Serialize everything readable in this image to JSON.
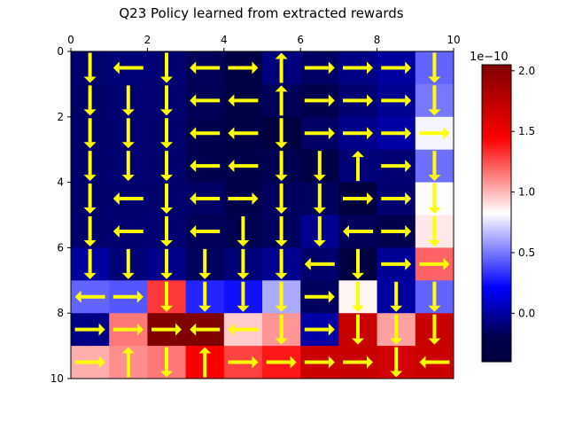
{
  "chart_data": {
    "type": "heatmap",
    "title": "Q23 Policy learned from extracted rewards",
    "xlim": [
      0,
      10
    ],
    "ylim": [
      10,
      0
    ],
    "x_ticks": [
      "0",
      "2",
      "4",
      "6",
      "8",
      "10"
    ],
    "y_ticks": [
      "0",
      "2",
      "4",
      "6",
      "8",
      "10"
    ],
    "rows": 10,
    "cols": 10,
    "values": [
      [
        -0.25,
        -0.22,
        -0.24,
        -0.32,
        -0.38,
        -0.2,
        -0.28,
        -0.18,
        -0.1,
        0.45
      ],
      [
        -0.27,
        -0.24,
        -0.24,
        -0.33,
        -0.38,
        -0.32,
        -0.36,
        -0.24,
        -0.14,
        0.5
      ],
      [
        -0.26,
        -0.24,
        -0.25,
        -0.34,
        -0.38,
        -0.4,
        -0.28,
        -0.16,
        -0.08,
        0.8
      ],
      [
        -0.26,
        -0.24,
        -0.25,
        -0.34,
        -0.36,
        -0.34,
        -0.38,
        -0.22,
        -0.24,
        0.48
      ],
      [
        -0.26,
        -0.24,
        -0.25,
        -0.28,
        -0.36,
        -0.3,
        -0.3,
        -0.4,
        -0.24,
        0.82
      ],
      [
        -0.26,
        -0.24,
        -0.24,
        -0.32,
        -0.34,
        -0.3,
        -0.14,
        -0.32,
        -0.36,
        0.88
      ],
      [
        -0.1,
        -0.22,
        -0.16,
        -0.3,
        -0.22,
        -0.14,
        -0.26,
        -0.42,
        -0.12,
        1.2
      ],
      [
        0.45,
        0.42,
        1.3,
        0.3,
        0.25,
        0.62,
        -0.3,
        0.85,
        -0.1,
        0.45
      ],
      [
        -0.18,
        1.15,
        2.05,
        2.05,
        0.95,
        1.08,
        -0.08,
        1.7,
        1.05,
        1.7
      ],
      [
        1.02,
        1.1,
        1.15,
        1.48,
        1.28,
        1.38,
        1.68,
        1.7,
        1.65,
        1.68
      ]
    ],
    "policy": [
      [
        "down",
        "left",
        "down",
        "left",
        "right",
        "up",
        "right",
        "right",
        "right",
        "down"
      ],
      [
        "down",
        "down",
        "down",
        "left",
        "left",
        "up",
        "right",
        "right",
        "right",
        "down"
      ],
      [
        "down",
        "down",
        "down",
        "left",
        "left",
        "down",
        "right",
        "right",
        "right",
        "right"
      ],
      [
        "down",
        "down",
        "down",
        "left",
        "left",
        "down",
        "down",
        "up",
        "right",
        "down"
      ],
      [
        "down",
        "left",
        "down",
        "left",
        "right",
        "down",
        "down",
        "right",
        "right",
        "down"
      ],
      [
        "down",
        "left",
        "down",
        "left",
        "down",
        "down",
        "down",
        "left",
        "right",
        "down"
      ],
      [
        "down",
        "down",
        "down",
        "down",
        "down",
        "down",
        "left",
        "down",
        "right",
        "right"
      ],
      [
        "left",
        "right",
        "down",
        "down",
        "down",
        "down",
        "right",
        "down",
        "down",
        "down"
      ],
      [
        "right",
        "right",
        "right",
        "left",
        "left",
        "down",
        "right",
        "down",
        "down",
        "down"
      ],
      [
        "right",
        "up",
        "down",
        "up",
        "right",
        "right",
        "right",
        "right",
        "down",
        "left"
      ]
    ],
    "arrow_color": "#ffff00",
    "colormap": "seismic",
    "colorbar": {
      "min": -0.4,
      "max": 2.05,
      "ticks": [
        "0.0",
        "0.5",
        "1.0",
        "1.5",
        "2.0"
      ],
      "tick_values": [
        0.0,
        0.5,
        1.0,
        1.5,
        2.0
      ],
      "offset_label": "1e−10"
    }
  }
}
